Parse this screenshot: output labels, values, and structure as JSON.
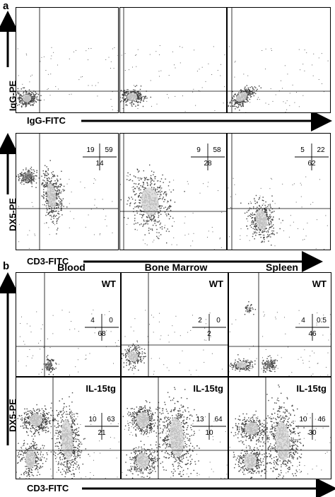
{
  "figure": {
    "panel_a_letter": "a",
    "panel_b_letter": "b",
    "a_top_y_label": "IgG-PE",
    "a_top_x_label": "IgG-FITC",
    "a_bottom_y_label": "DX5-PE",
    "a_bottom_x_label": "CD3-FITC",
    "b_y_label": "DX5-PE",
    "b_x_label": "CD3-FITC",
    "columns": [
      "Blood",
      "Bone Marrow",
      "Spleen"
    ],
    "row_labels": [
      "WT",
      "IL-15tg"
    ]
  },
  "chart_data": [
    {
      "type": "scatter",
      "panel": "a",
      "row": "isotype",
      "column": 1,
      "quadrants": null
    },
    {
      "type": "scatter",
      "panel": "a",
      "row": "isotype",
      "column": 2,
      "quadrants": null
    },
    {
      "type": "scatter",
      "panel": "a",
      "row": "isotype",
      "column": 3,
      "quadrants": null
    },
    {
      "type": "scatter",
      "panel": "a",
      "row": "stained",
      "column": 1,
      "quadrants": {
        "upper_left": "19",
        "upper_right": "59",
        "lower_right": "14"
      }
    },
    {
      "type": "scatter",
      "panel": "a",
      "row": "stained",
      "column": 2,
      "quadrants": {
        "upper_left": "9",
        "upper_right": "58",
        "lower_right": "28"
      }
    },
    {
      "type": "scatter",
      "panel": "a",
      "row": "stained",
      "column": 3,
      "quadrants": {
        "upper_left": "5",
        "upper_right": "22",
        "lower_right": "62"
      }
    },
    {
      "type": "scatter",
      "panel": "b",
      "row": "WT",
      "column": "Blood",
      "quadrants": {
        "upper_left": "4",
        "upper_right": "0",
        "lower_right": "68"
      }
    },
    {
      "type": "scatter",
      "panel": "b",
      "row": "WT",
      "column": "Bone Marrow",
      "quadrants": {
        "upper_left": "2",
        "upper_right": "0",
        "lower_right": "2"
      }
    },
    {
      "type": "scatter",
      "panel": "b",
      "row": "WT",
      "column": "Spleen",
      "quadrants": {
        "upper_left": "4",
        "upper_right": "0.5",
        "lower_right": "46"
      }
    },
    {
      "type": "scatter",
      "panel": "b",
      "row": "IL-15tg",
      "column": "Blood",
      "quadrants": {
        "upper_left": "10",
        "upper_right": "63",
        "lower_right": "21"
      }
    },
    {
      "type": "scatter",
      "panel": "b",
      "row": "IL-15tg",
      "column": "Bone Marrow",
      "quadrants": {
        "upper_left": "13",
        "upper_right": "64",
        "lower_right": "10"
      }
    },
    {
      "type": "scatter",
      "panel": "b",
      "row": "IL-15tg",
      "column": "Spleen",
      "quadrants": {
        "upper_left": "10",
        "upper_right": "46",
        "lower_right": "30"
      }
    }
  ]
}
